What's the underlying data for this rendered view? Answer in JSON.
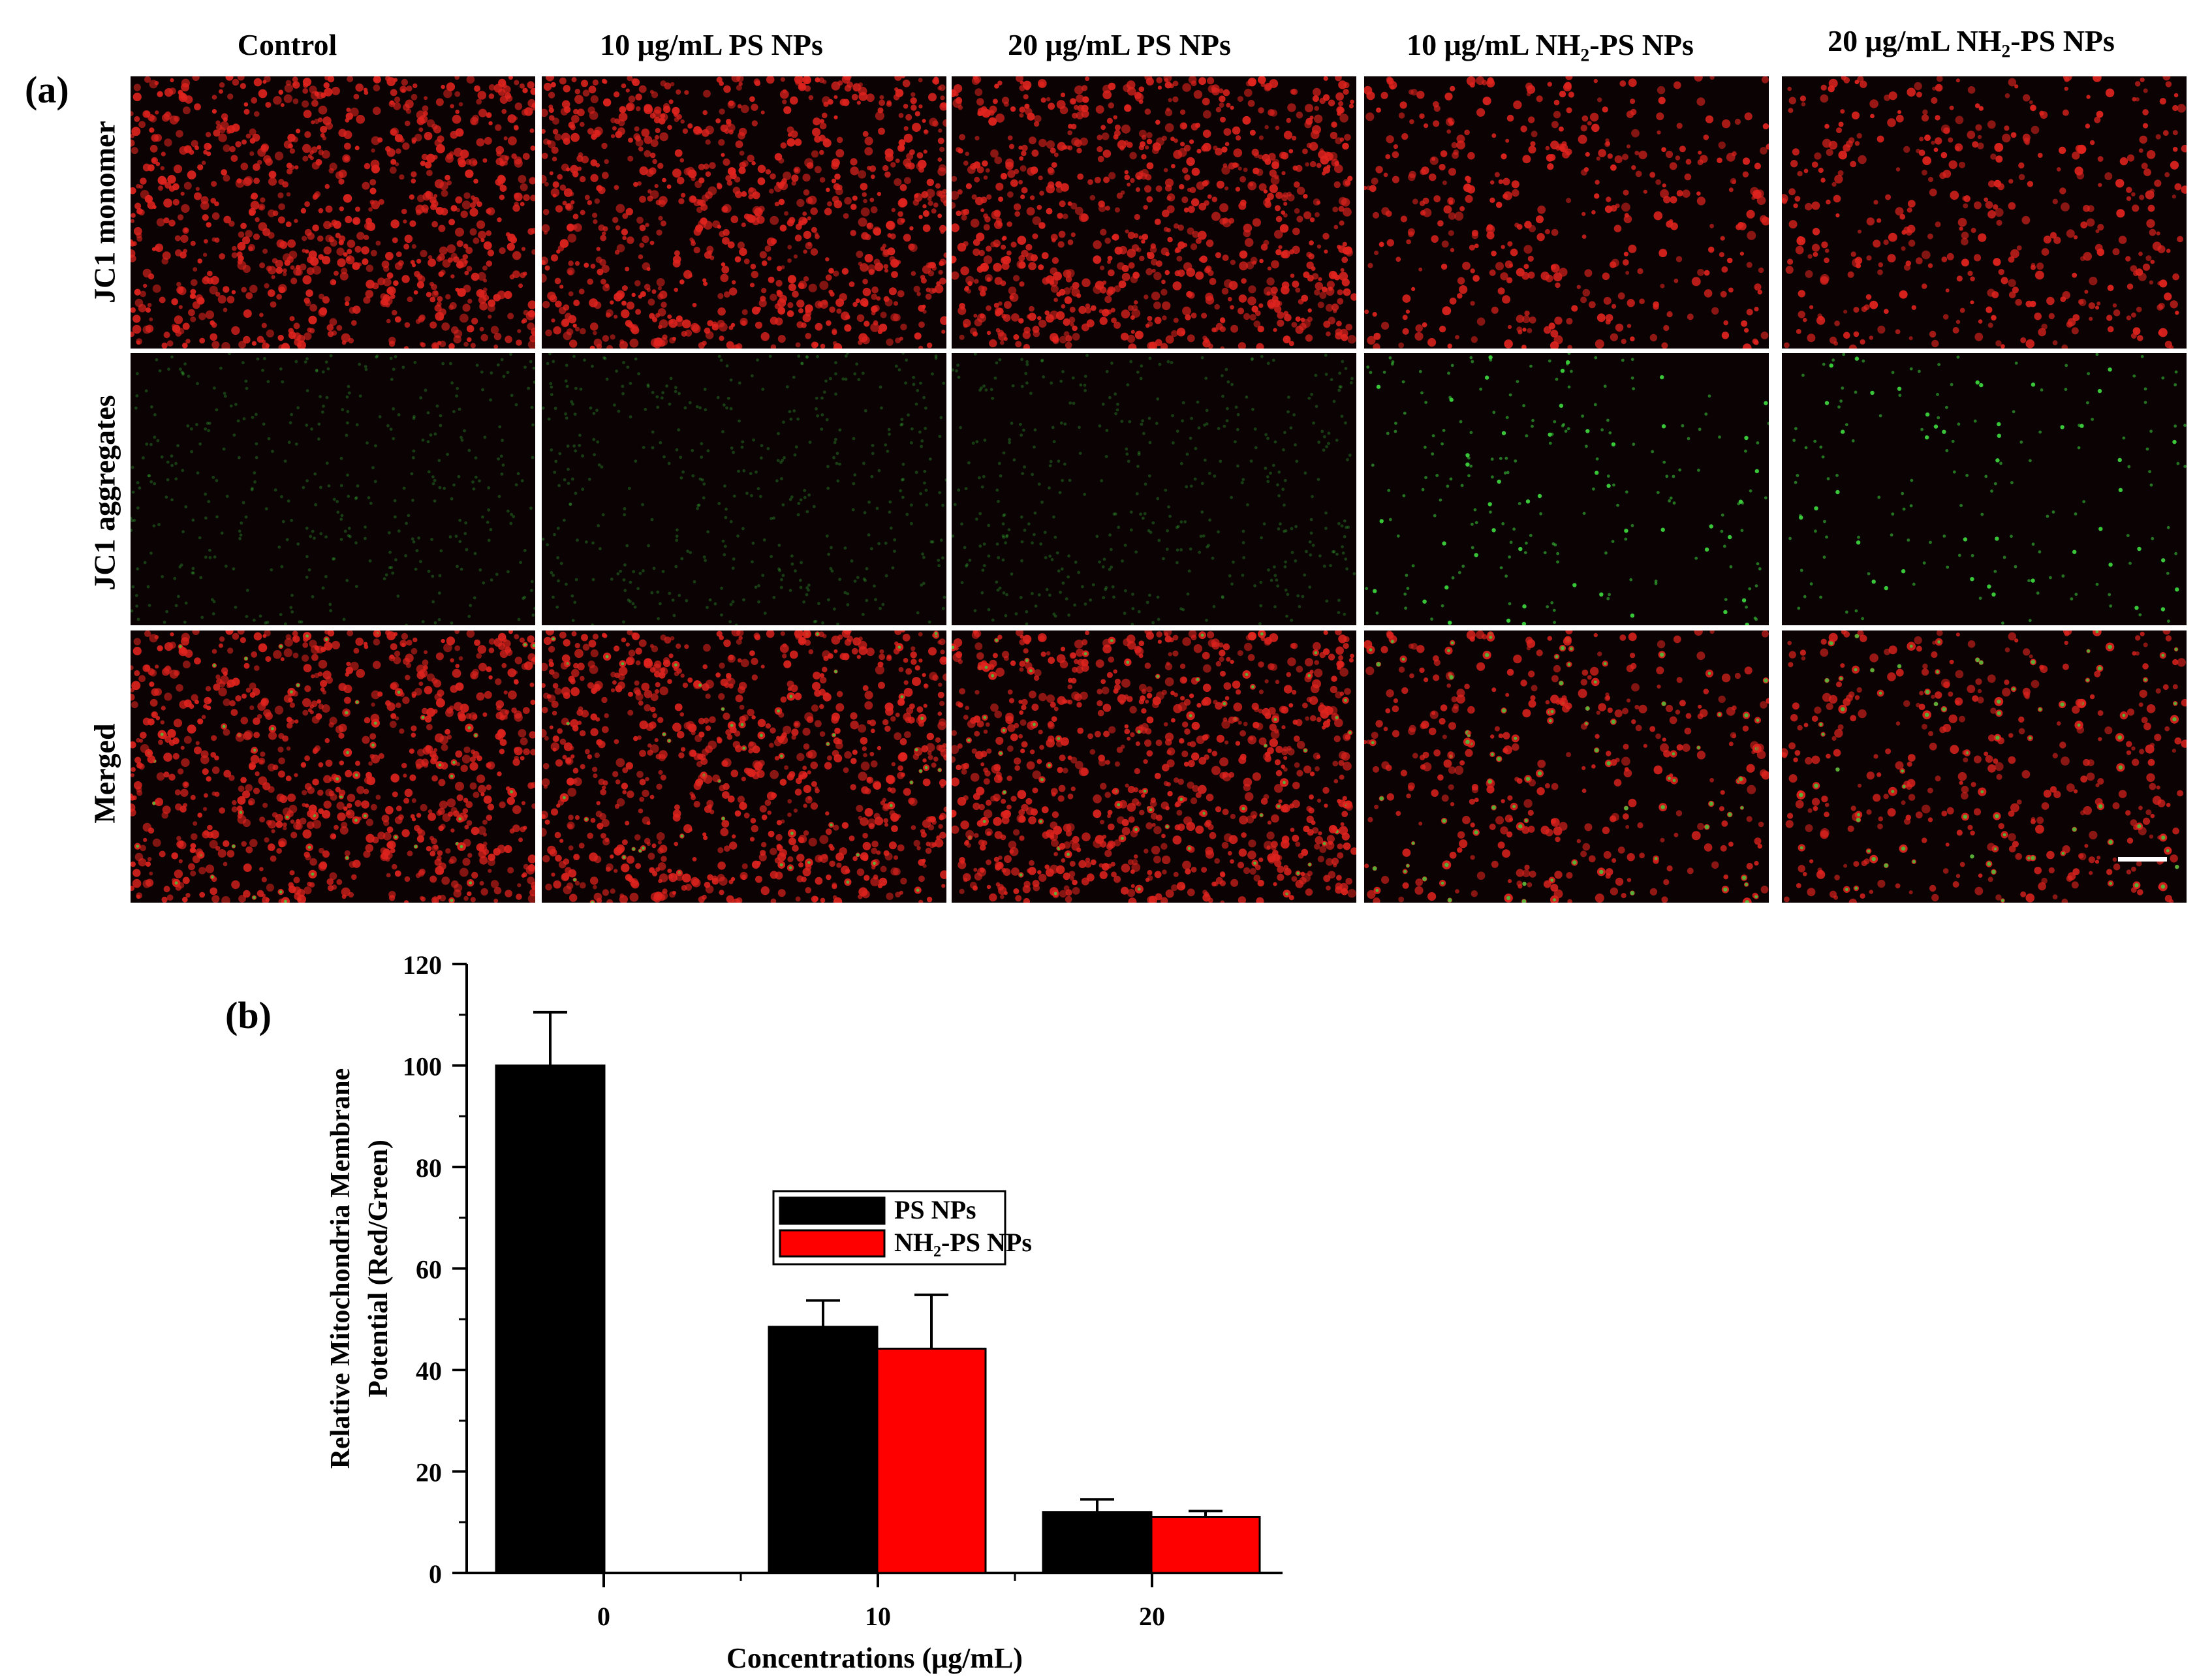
{
  "figure": {
    "panel_a_label": "(a)",
    "panel_b_label": "(b)",
    "columns": [
      {
        "id": "control",
        "label": "Control"
      },
      {
        "id": "ps10",
        "label": "10 μg/mL PS NPs"
      },
      {
        "id": "ps20",
        "label": "20 μg/mL PS NPs"
      },
      {
        "id": "nh10",
        "label": "10 μg/mL NH₂-PS NPs"
      },
      {
        "id": "nh20",
        "label": "20 μg/mL NH₂-PS NPs"
      }
    ],
    "rows": [
      {
        "id": "monomer",
        "label": "JC1 monomer",
        "stain": "red"
      },
      {
        "id": "aggregates",
        "label": "JC1 aggregates",
        "stain": "green"
      },
      {
        "id": "merged",
        "label": "Merged",
        "stain": "merged"
      }
    ],
    "colors": {
      "red_stain": "#e0231e",
      "green_stain": "#3cd23c",
      "tile_background": "#0b0303"
    }
  },
  "chart_data": {
    "type": "bar",
    "xlabel": "Concentrations (μg/mL)",
    "ylabel_lines": [
      "Relative Mitochondria Membrane",
      "Potential (Red/Green)"
    ],
    "categories": [
      "0",
      "10",
      "20"
    ],
    "ylim": [
      0,
      120
    ],
    "yticks": [
      "0",
      "20",
      "40",
      "60",
      "80",
      "100",
      "120"
    ],
    "legend_position": "center",
    "series": [
      {
        "name": "PS NPs",
        "color": "#000000",
        "values": [
          100,
          48.5,
          12
        ],
        "errors": [
          10.5,
          5.2,
          2.5
        ]
      },
      {
        "name": "NH₂-PS NPs",
        "color": "#ff0000",
        "values": [
          null,
          44.2,
          11
        ],
        "errors": [
          null,
          10.6,
          1.2
        ]
      }
    ]
  }
}
